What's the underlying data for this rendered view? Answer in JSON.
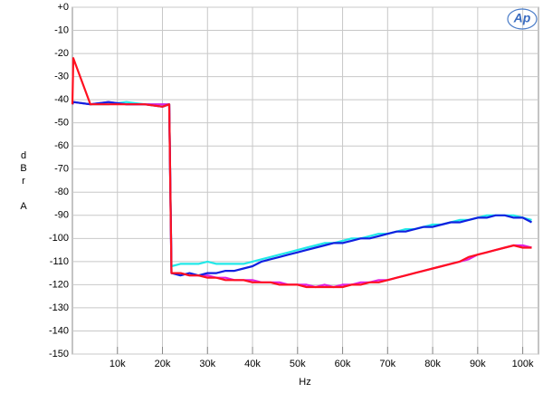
{
  "chart_data": {
    "type": "line",
    "xlabel": "Hz",
    "ylabel": [
      "d",
      "B",
      "r",
      "A"
    ],
    "logo": "Ap",
    "x": [
      0,
      200,
      4000,
      8000,
      12000,
      16000,
      20000,
      21500,
      22000,
      24000,
      26000,
      28000,
      30000,
      32000,
      34000,
      36000,
      38000,
      40000,
      42000,
      44000,
      46000,
      48000,
      50000,
      52000,
      54000,
      56000,
      58000,
      60000,
      62000,
      64000,
      66000,
      68000,
      70000,
      72000,
      74000,
      76000,
      78000,
      80000,
      82000,
      84000,
      86000,
      88000,
      90000,
      92000,
      94000,
      96000,
      98000,
      100000,
      102000
    ],
    "series": [
      {
        "color": "#22e8e8",
        "values": [
          -42,
          -41,
          -42,
          -42,
          -41,
          -42,
          -42,
          -42,
          -112,
          -111,
          -111,
          -111,
          -110,
          -111,
          -111,
          -111,
          -111,
          -110,
          -109,
          -108,
          -107,
          -106,
          -105,
          -104,
          -103,
          -102,
          -102,
          -101,
          -100,
          -100,
          -99,
          -98,
          -98,
          -97,
          -96,
          -96,
          -95,
          -94,
          -94,
          -93,
          -92,
          -92,
          -91,
          -90,
          -90,
          -90,
          -90,
          -91,
          -92
        ]
      },
      {
        "color": "#e020e0",
        "values": [
          -42,
          -41,
          -42,
          -41,
          -42,
          -42,
          -42,
          -42,
          -115,
          -115,
          -116,
          -116,
          -116,
          -117,
          -117,
          -118,
          -118,
          -118,
          -119,
          -119,
          -119,
          -120,
          -120,
          -120,
          -121,
          -120,
          -121,
          -120,
          -120,
          -119,
          -119,
          -118,
          -118,
          -117,
          -116,
          -115,
          -114,
          -113,
          -112,
          -111,
          -110,
          -109,
          -107,
          -106,
          -105,
          -104,
          -103,
          -103,
          -104
        ]
      },
      {
        "color": "#1020e0",
        "values": [
          -42,
          -41,
          -42,
          -41,
          -42,
          -42,
          -43,
          -42,
          -115,
          -116,
          -115,
          -116,
          -115,
          -115,
          -114,
          -114,
          -113,
          -112,
          -110,
          -109,
          -108,
          -107,
          -106,
          -105,
          -104,
          -103,
          -102,
          -102,
          -101,
          -100,
          -100,
          -99,
          -98,
          -97,
          -97,
          -96,
          -95,
          -95,
          -94,
          -93,
          -93,
          -92,
          -91,
          -91,
          -90,
          -90,
          -91,
          -91,
          -93
        ]
      },
      {
        "color": "#ff1020",
        "values": [
          -42,
          -22,
          -42,
          -42,
          -42,
          -42,
          -43,
          -42,
          -115,
          -115,
          -116,
          -116,
          -117,
          -117,
          -118,
          -118,
          -118,
          -119,
          -119,
          -119,
          -120,
          -120,
          -120,
          -121,
          -121,
          -121,
          -121,
          -121,
          -120,
          -120,
          -119,
          -119,
          -118,
          -117,
          -116,
          -115,
          -114,
          -113,
          -112,
          -111,
          -110,
          -108,
          -107,
          -106,
          -105,
          -104,
          -103,
          -104,
          -104
        ]
      }
    ],
    "xlim": [
      0,
      103500
    ],
    "xticks": [
      {
        "value": 10000,
        "label": "10k"
      },
      {
        "value": 20000,
        "label": "20k"
      },
      {
        "value": 30000,
        "label": "30k"
      },
      {
        "value": 40000,
        "label": "40k"
      },
      {
        "value": 50000,
        "label": "50k"
      },
      {
        "value": 60000,
        "label": "60k"
      },
      {
        "value": 70000,
        "label": "70k"
      },
      {
        "value": 80000,
        "label": "80k"
      },
      {
        "value": 90000,
        "label": "90k"
      },
      {
        "value": 100000,
        "label": "100k"
      }
    ],
    "ylim": [
      -150,
      0
    ],
    "yticks": [
      {
        "value": 0,
        "label": "+0"
      },
      -10,
      -20,
      -30,
      -40,
      -50,
      -60,
      -70,
      -80,
      -90,
      -100,
      -110,
      -120,
      -130,
      -140,
      -150
    ],
    "grid": true
  }
}
